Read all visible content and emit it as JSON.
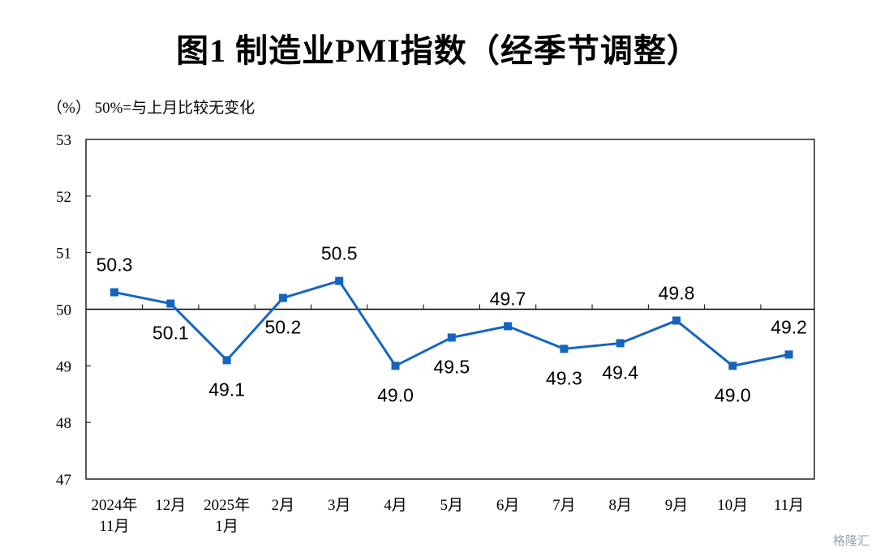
{
  "header": {
    "title": "图1  制造业PMI指数（经季节调整）",
    "unit_note": "（%）  50%=与上月比较无变化"
  },
  "watermark": "格隆汇",
  "chart_data": {
    "type": "line",
    "title": "图1  制造业PMI指数（经季节调整）",
    "ylabel": "（%）",
    "xlabel": "",
    "ylim": [
      47,
      53
    ],
    "yticks": [
      47,
      48,
      49,
      50,
      51,
      52,
      53
    ],
    "reference_line": 50,
    "reference_note": "50%=与上月比较无变化",
    "categories": [
      [
        "2024年",
        "11月"
      ],
      [
        "12月"
      ],
      [
        "2025年",
        "1月"
      ],
      [
        "2月"
      ],
      [
        "3月"
      ],
      [
        "4月"
      ],
      [
        "5月"
      ],
      [
        "6月"
      ],
      [
        "7月"
      ],
      [
        "8月"
      ],
      [
        "9月"
      ],
      [
        "10月"
      ],
      [
        "11月"
      ]
    ],
    "series": [
      {
        "values": [
          50.3,
          50.1,
          49.1,
          50.2,
          50.5,
          49.0,
          49.5,
          49.7,
          49.3,
          49.4,
          49.8,
          49.0,
          49.2
        ],
        "labels": [
          "50.3",
          "50.1",
          "49.1",
          "50.2",
          "50.5",
          "49.0",
          "49.5",
          "49.7",
          "49.3",
          "49.4",
          "49.8",
          "49.0",
          "49.2"
        ],
        "color": "#1565c0"
      }
    ],
    "grid": false,
    "legend": "none"
  }
}
